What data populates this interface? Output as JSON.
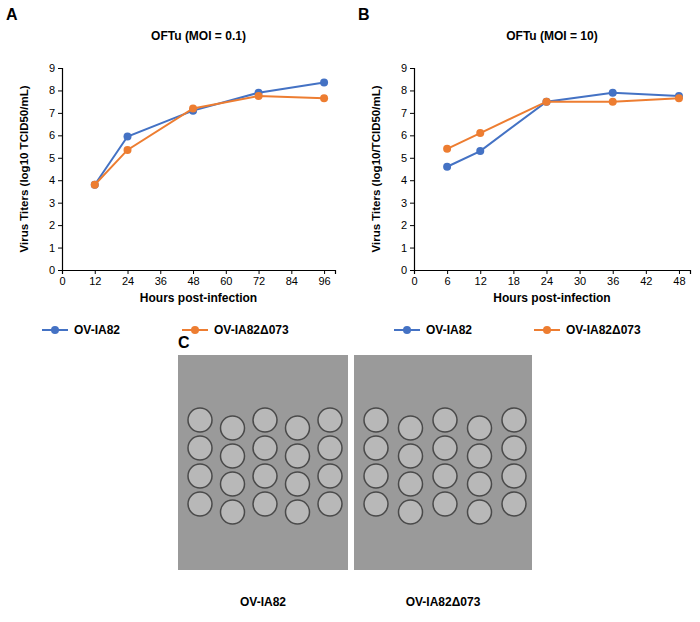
{
  "chart_data": [
    {
      "type": "line",
      "title": "OFTu (MOI = 0.1)",
      "x_label": "Hours post-infection",
      "y_label": "Virus Titers (log10 TCID50/mL)",
      "x": [
        12,
        24,
        48,
        72,
        96
      ],
      "series": [
        {
          "name": "OV-IA82",
          "color": "#4472c4",
          "values": [
            3.8,
            5.95,
            7.1,
            7.9,
            8.35
          ]
        },
        {
          "name": "OV-IA82Δ073",
          "color": "#ed7d31",
          "values": [
            3.8,
            5.35,
            7.2,
            7.75,
            7.65
          ]
        }
      ],
      "xlim": [
        0,
        100
      ],
      "xticks": [
        0,
        12,
        24,
        36,
        48,
        60,
        72,
        84,
        96
      ],
      "ylim": [
        0,
        9
      ],
      "yticks": [
        0,
        1,
        2,
        3,
        4,
        5,
        6,
        7,
        8,
        9
      ],
      "grid": false,
      "legend": "bottom",
      "marker": "circle",
      "line_style": "solid"
    },
    {
      "type": "line",
      "title": "OFTu (MOI = 10)",
      "x_label": "Hours post-infection",
      "y_label": "Virus Titers (log10/TCID50/mL)",
      "x": [
        6,
        12,
        24,
        36,
        48
      ],
      "series": [
        {
          "name": "OV-IA82",
          "color": "#4472c4",
          "values": [
            4.6,
            5.3,
            7.5,
            7.9,
            7.75
          ]
        },
        {
          "name": "OV-IA82Δ073",
          "color": "#ed7d31",
          "values": [
            5.4,
            6.1,
            7.5,
            7.5,
            7.65
          ]
        }
      ],
      "xlim": [
        0,
        50
      ],
      "xticks": [
        0,
        6,
        12,
        18,
        24,
        30,
        36,
        42,
        48
      ],
      "ylim": [
        0,
        9
      ],
      "yticks": [
        0,
        1,
        2,
        3,
        4,
        5,
        6,
        7,
        8,
        9
      ],
      "grid": false,
      "legend": "bottom",
      "marker": "circle",
      "line_style": "solid"
    }
  ],
  "figure": {
    "panel_labels": [
      "A",
      "B",
      "C"
    ],
    "image_captions": [
      "OV-IA82",
      "OV-IA82Δ073"
    ]
  }
}
